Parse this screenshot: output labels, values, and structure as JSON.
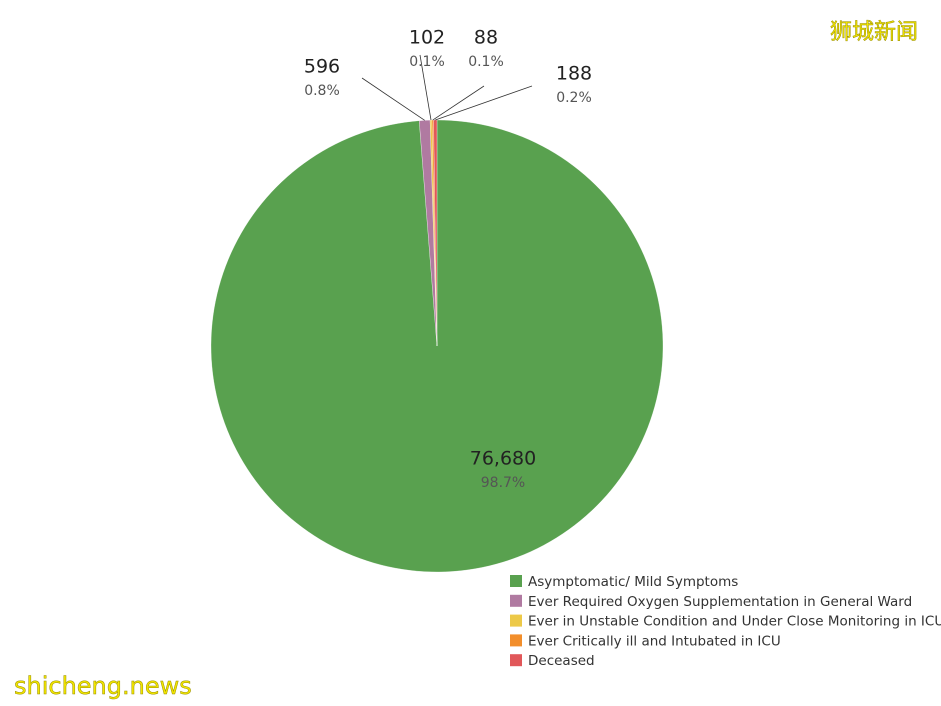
{
  "chart_data": {
    "type": "pie",
    "categories": [
      "Asymptomatic/ Mild Symptoms",
      "Ever Required Oxygen Supplementation in General Ward",
      "Ever in Unstable Condition and Under Close Monitoring in ICU",
      "Ever Critically ill and Intubated in ICU",
      "Deceased"
    ],
    "values": [
      76680,
      596,
      102,
      88,
      188
    ],
    "value_labels": [
      "76,680",
      "596",
      "102",
      "88",
      "188"
    ],
    "percent_labels": [
      "98.7%",
      "0.8%",
      "0.1%",
      "0.1%",
      "0.2%"
    ],
    "colors": [
      "#59a14f",
      "#b07aa1",
      "#edc948",
      "#f28e2b",
      "#e15759"
    ],
    "legend": "bottom-right"
  },
  "watermarks": [
    "狮城新闻",
    "shicheng.news"
  ]
}
